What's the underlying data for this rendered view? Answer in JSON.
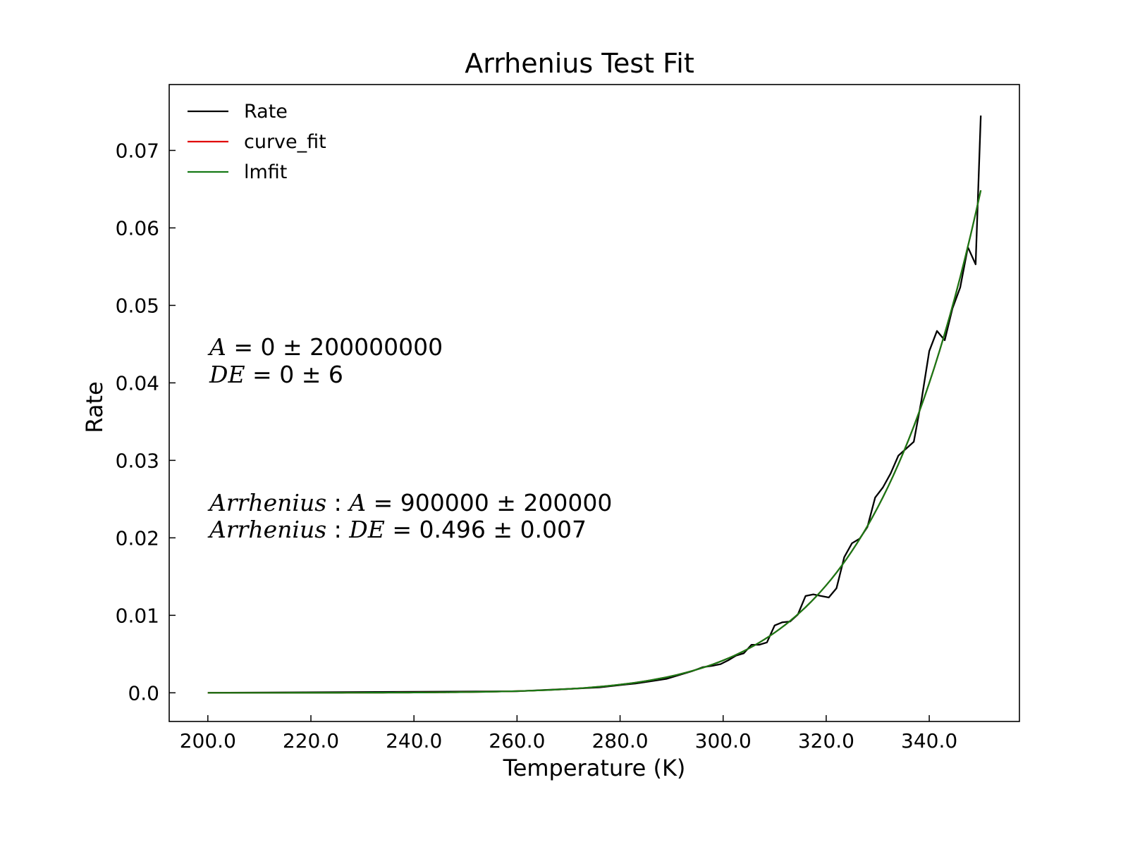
{
  "chart_data": {
    "type": "line",
    "title": "Arrhenius Test Fit",
    "xlabel": "Temperature (K)",
    "ylabel": "Rate",
    "xlim": [
      192.5,
      357.5
    ],
    "ylim": [
      -0.0037,
      0.0785
    ],
    "x_ticks": [
      200,
      220,
      240,
      260,
      280,
      300,
      320,
      340
    ],
    "x_tick_labels": [
      "200.0",
      "220.0",
      "240.0",
      "260.0",
      "280.0",
      "300.0",
      "320.0",
      "340.0"
    ],
    "y_ticks": [
      0,
      0.01,
      0.02,
      0.03,
      0.04,
      0.05,
      0.06,
      0.07
    ],
    "y_tick_labels": [
      "0.0",
      "0.01",
      "0.02",
      "0.03",
      "0.04",
      "0.05",
      "0.06",
      "0.07"
    ],
    "grid": false,
    "legend_position": "top-left",
    "series": [
      {
        "name": "Rate",
        "color": "#000000",
        "x": [
          200,
          260,
          270,
          276,
          280,
          283,
          286,
          289,
          292,
          294,
          296,
          298,
          299.5,
          301,
          302.5,
          304,
          305.5,
          307,
          308.5,
          310,
          311.5,
          313,
          314.5,
          316,
          317.5,
          319,
          320.5,
          322,
          323.5,
          325,
          326.5,
          328,
          329.5,
          331,
          332.5,
          334,
          335.5,
          337,
          338.5,
          340,
          341.5,
          343,
          344.5,
          346,
          347.5,
          349,
          350
        ],
        "y": [
          0,
          0.0002,
          0.0005,
          0.0007,
          0.001,
          0.0012,
          0.0015,
          0.0018,
          0.0024,
          0.0028,
          0.0033,
          0.0035,
          0.0037,
          0.0042,
          0.0048,
          0.0051,
          0.0062,
          0.0062,
          0.0065,
          0.0087,
          0.0091,
          0.0092,
          0.0101,
          0.0125,
          0.0127,
          0.0125,
          0.0123,
          0.0135,
          0.0175,
          0.0193,
          0.0199,
          0.0214,
          0.0252,
          0.0265,
          0.0283,
          0.0306,
          0.0315,
          0.0324,
          0.0378,
          0.0441,
          0.0467,
          0.0455,
          0.0496,
          0.0523,
          0.0575,
          0.0553,
          0.0745
        ]
      },
      {
        "name": "curve_fit",
        "color": "#e00000",
        "A": 900000,
        "DE": 0.496
      },
      {
        "name": "lmfit",
        "color": "#167a16",
        "A": 900000,
        "DE": 0.496
      }
    ],
    "annotations": [
      "A = 0 ± 200000000",
      "DE = 0 ± 6",
      "Arrhenius : A = 900000 ± 200000",
      "Arrhenius : DE = 0.496 ± 0.007"
    ]
  }
}
